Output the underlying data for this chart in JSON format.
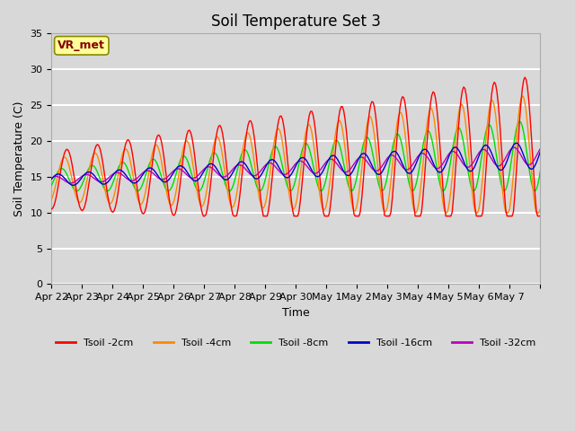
{
  "title": "Soil Temperature Set 3",
  "xlabel": "Time",
  "ylabel": "Soil Temperature (C)",
  "ylim": [
    0,
    35
  ],
  "yticks": [
    0,
    5,
    10,
    15,
    20,
    25,
    30,
    35
  ],
  "date_labels": [
    "Apr 22",
    "Apr 23",
    "Apr 24",
    "Apr 25",
    "Apr 26",
    "Apr 27",
    "Apr 28",
    "Apr 29",
    "Apr 30",
    "May 1",
    "May 2",
    "May 3",
    "May 4",
    "May 5",
    "May 6",
    "May 7"
  ],
  "series_colors": [
    "#ff0000",
    "#ff8800",
    "#00dd00",
    "#0000cc",
    "#bb00bb"
  ],
  "series_labels": [
    "Tsoil -2cm",
    "Tsoil -4cm",
    "Tsoil -8cm",
    "Tsoil -16cm",
    "Tsoil -32cm"
  ],
  "annotation_text": "VR_met",
  "annotation_color": "#880000",
  "annotation_bg": "#ffff99",
  "annotation_edge": "#888800",
  "bg_color": "#d8d8d8",
  "title_fontsize": 12,
  "label_fontsize": 9,
  "tick_fontsize": 8
}
